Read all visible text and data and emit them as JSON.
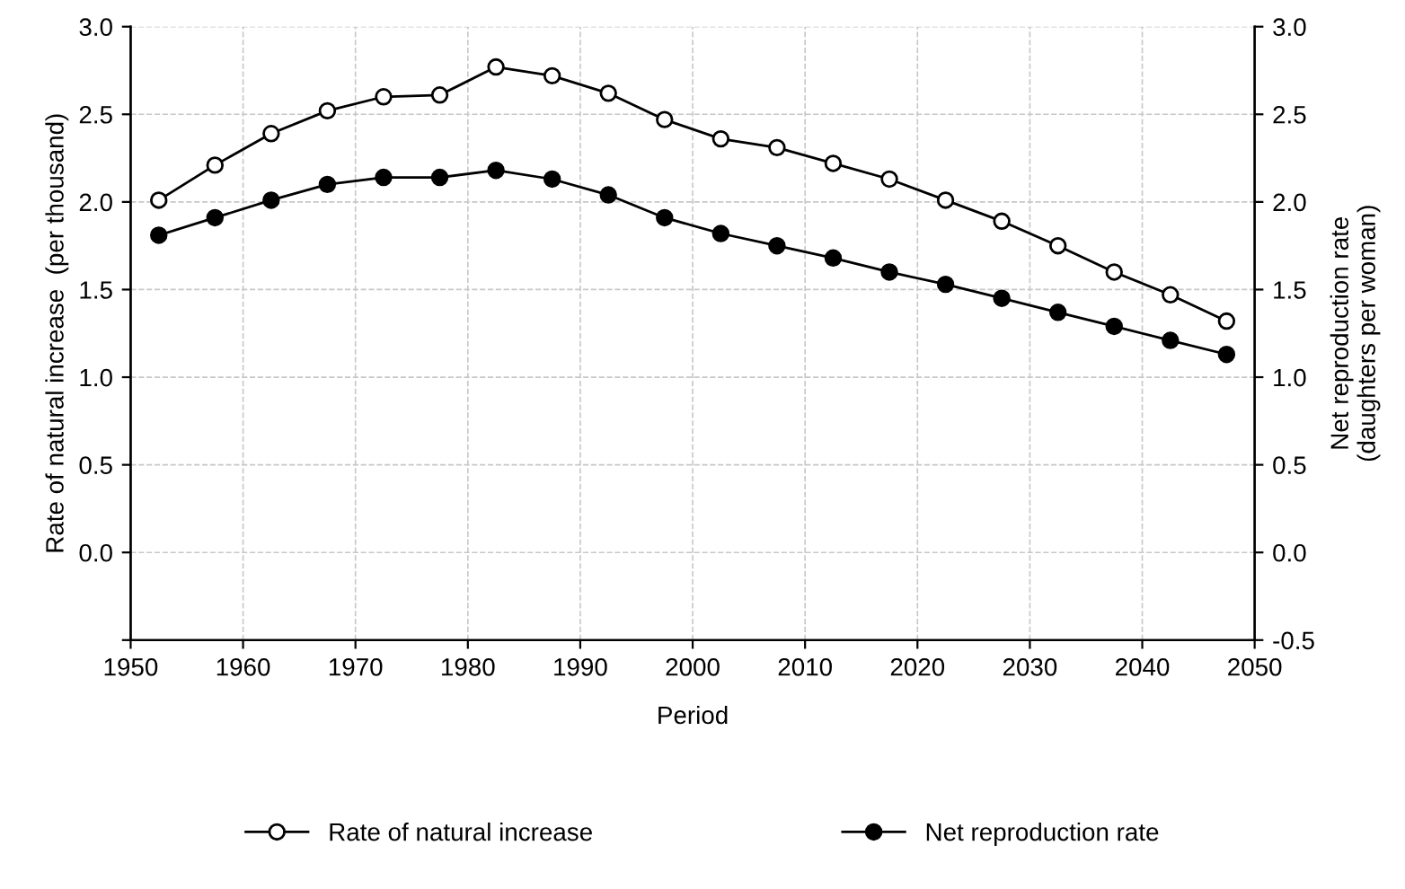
{
  "chart_data": {
    "type": "line",
    "xlabel": "Period",
    "ylabel": "Rate of natural increase  (per thousand)",
    "y2label": "Net reproduction rate\n(daughters per woman)",
    "x": [
      1952.5,
      1957.5,
      1962.5,
      1967.5,
      1972.5,
      1977.5,
      1982.5,
      1987.5,
      1992.5,
      1997.5,
      2002.5,
      2007.5,
      2012.5,
      2017.5,
      2022.5,
      2027.5,
      2032.5,
      2037.5,
      2042.5,
      2047.5
    ],
    "series": [
      {
        "name": "Rate of natural increase",
        "color": "#000000",
        "marker": "circle",
        "values": [
          2.01,
          2.21,
          2.39,
          2.52,
          2.6,
          2.61,
          2.77,
          2.72,
          2.62,
          2.47,
          2.36,
          2.31,
          2.22,
          2.13,
          2.01,
          1.89,
          1.75,
          1.6,
          1.47,
          1.32
        ]
      },
      {
        "name": "Net reproduction rate",
        "color": "#000000",
        "marker": "circle",
        "axis": "y2",
        "values": [
          1.81,
          1.91,
          2.01,
          2.1,
          2.14,
          2.14,
          2.18,
          2.13,
          2.04,
          1.91,
          1.82,
          1.75,
          1.68,
          1.6,
          1.53,
          1.45,
          1.37,
          1.29,
          1.21,
          1.13
        ]
      }
    ],
    "xlim": [
      1950,
      2050
    ],
    "xticks": [
      1950,
      1960,
      1970,
      1980,
      1990,
      2000,
      2010,
      2020,
      2030,
      2040,
      2050
    ],
    "ylim": [
      -0.5,
      3.0
    ],
    "yticks": [
      {
        "value": -0.5,
        "label": null
      },
      {
        "value": 0,
        "label": "0.0"
      },
      {
        "value": 0.5,
        "label": "0.5"
      },
      {
        "value": 1,
        "label": "1.0"
      },
      {
        "value": 1.5,
        "label": "1.5"
      },
      {
        "value": 2,
        "label": "2.0"
      },
      {
        "value": 2.5,
        "label": "2.5"
      },
      {
        "value": 3,
        "label": "3.0"
      }
    ],
    "y2lim": [
      -0.5,
      3.0
    ],
    "y2ticks": [
      {
        "value": -0.5,
        "label": "-0.5"
      },
      {
        "value": 0,
        "label": "0.0"
      },
      {
        "value": 0.5,
        "label": "0.5"
      },
      {
        "value": 1,
        "label": "1.0"
      },
      {
        "value": 1.5,
        "label": "1.5"
      },
      {
        "value": 2,
        "label": "2.0"
      },
      {
        "value": 2.5,
        "label": "2.5"
      },
      {
        "value": 3,
        "label": "3.0"
      }
    ],
    "grid": true,
    "legend": "bottom",
    "line_style": "solid"
  }
}
